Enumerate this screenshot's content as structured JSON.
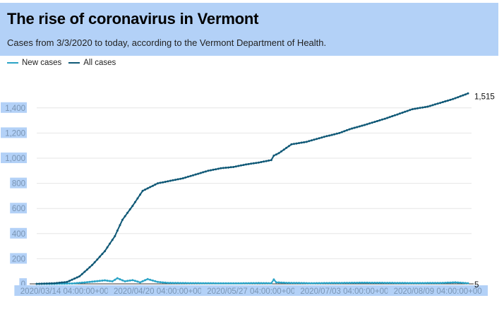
{
  "header": {
    "title": "The rise of coronavirus in Vermont",
    "subtitle": "Cases from 3/3/2020 to today, according to the Vermont Department of Health."
  },
  "colors": {
    "header_bg": "#b3d1f7",
    "new_cases": "#2aa3c6",
    "all_cases": "#0f5876",
    "tick_bg": "#b3d1f7",
    "tick_text": "#7a95b4",
    "grid": "#e6e6e6"
  },
  "chart_data": {
    "type": "line",
    "title": "The rise of coronavirus in Vermont",
    "subtitle": "Cases from 3/3/2020 to today, according to the Vermont Department of Health.",
    "xlabel": "",
    "ylabel": "",
    "ylim": [
      0,
      1500
    ],
    "yticks": [
      "0",
      "200",
      "400",
      "600",
      "800",
      "1,000",
      "1,200",
      "1,400"
    ],
    "xticks": [
      "2020/03/14 04:00:00+00",
      "2020/04/20 04:00:00+00",
      "2020/05/27 04:00:00+00",
      "2020/07/03 04:00:00+00",
      "2020/08/09 04:00:00+00"
    ],
    "xtick_dates": [
      "2020-03-14",
      "2020-04-20",
      "2020-05-27",
      "2020-07-03",
      "2020-08-09"
    ],
    "xrange": [
      "2020-03-03",
      "2020-08-21"
    ],
    "grid": true,
    "legend": "top-left",
    "end_labels": {
      "all_cases": "1,515",
      "new_cases": "5"
    },
    "series": [
      {
        "name": "New cases",
        "color": "#2aa3c6",
        "x": [
          "2020-03-03",
          "2020-03-10",
          "2020-03-17",
          "2020-03-20",
          "2020-03-24",
          "2020-03-27",
          "2020-03-30",
          "2020-04-02",
          "2020-04-04",
          "2020-04-07",
          "2020-04-10",
          "2020-04-13",
          "2020-04-16",
          "2020-04-20",
          "2020-04-24",
          "2020-04-30",
          "2020-05-10",
          "2020-05-20",
          "2020-05-30",
          "2020-06-04",
          "2020-06-05",
          "2020-06-06",
          "2020-06-10",
          "2020-06-20",
          "2020-06-30",
          "2020-07-10",
          "2020-07-20",
          "2020-07-30",
          "2020-08-10",
          "2020-08-16",
          "2020-08-21"
        ],
        "y": [
          0,
          0,
          3,
          8,
          15,
          22,
          28,
          20,
          45,
          20,
          30,
          12,
          38,
          15,
          8,
          6,
          5,
          4,
          6,
          5,
          35,
          12,
          8,
          5,
          7,
          9,
          8,
          6,
          7,
          12,
          5
        ]
      },
      {
        "name": "All cases",
        "color": "#0f5876",
        "x": [
          "2020-03-03",
          "2020-03-10",
          "2020-03-15",
          "2020-03-20",
          "2020-03-25",
          "2020-03-30",
          "2020-04-03",
          "2020-04-06",
          "2020-04-10",
          "2020-04-14",
          "2020-04-17",
          "2020-04-20",
          "2020-04-25",
          "2020-04-30",
          "2020-05-05",
          "2020-05-10",
          "2020-05-15",
          "2020-05-20",
          "2020-05-25",
          "2020-05-30",
          "2020-06-04",
          "2020-06-05",
          "2020-06-07",
          "2020-06-12",
          "2020-06-18",
          "2020-06-25",
          "2020-07-01",
          "2020-07-05",
          "2020-07-12",
          "2020-07-20",
          "2020-07-30",
          "2020-08-05",
          "2020-08-10",
          "2020-08-15",
          "2020-08-21"
        ],
        "y": [
          0,
          5,
          15,
          60,
          150,
          260,
          380,
          510,
          620,
          740,
          770,
          800,
          820,
          840,
          870,
          900,
          920,
          930,
          950,
          965,
          985,
          1020,
          1040,
          1110,
          1130,
          1170,
          1200,
          1230,
          1270,
          1320,
          1390,
          1410,
          1440,
          1470,
          1515
        ]
      }
    ]
  }
}
